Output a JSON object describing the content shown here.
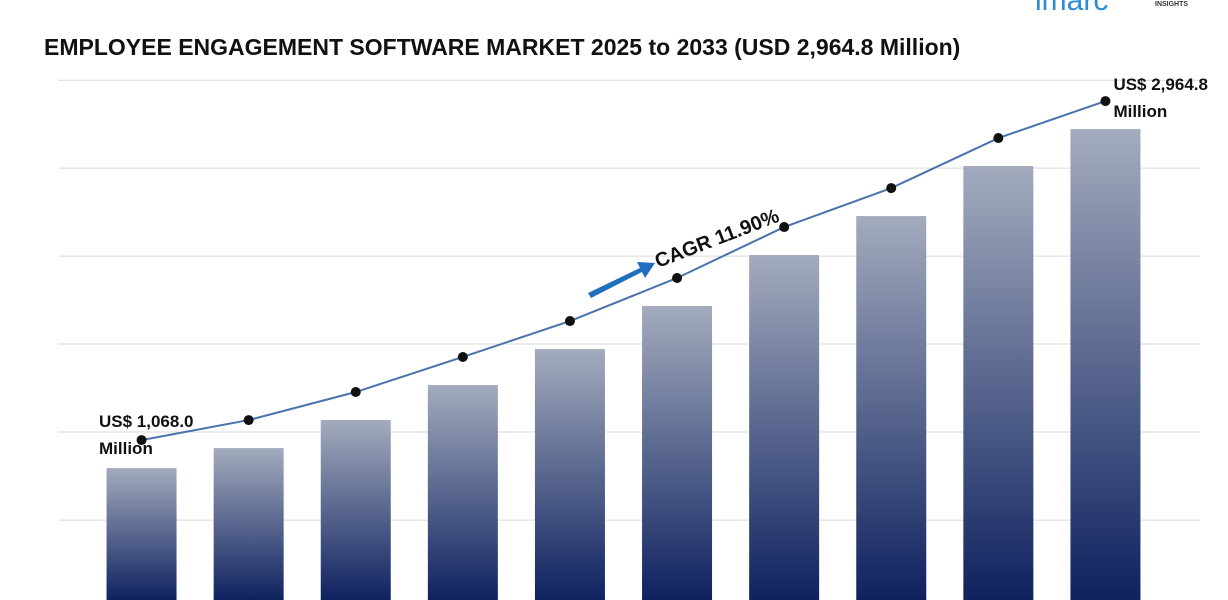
{
  "chart_data": {
    "type": "bar",
    "title": "EMPLOYEE ENGAGEMENT SOFTWARE MARKET 2025 to 2033 (USD 2,964.8 Million)",
    "annotation": "CAGR 11.90%",
    "logo": {
      "name": "imarc",
      "tagline": "INSIGHTS"
    },
    "categories": [
      null,
      null,
      null,
      null,
      null,
      null,
      null,
      null,
      null,
      null
    ],
    "values": [
      1068.0,
      1180,
      1337,
      1533,
      1734,
      1975,
      2260,
      2478,
      2758,
      2964.8
    ],
    "value_labels": [
      "US$ 1,068.0 Million",
      null,
      null,
      null,
      null,
      null,
      null,
      null,
      null,
      "US$ 2,964.8 Million"
    ],
    "color": "#0f2260",
    "line_color": "#4a72ad",
    "ylim": [
      330,
      3245
    ],
    "yticks": [
      777,
      1270,
      1762,
      2254,
      2746,
      3238
    ],
    "grid": true
  }
}
